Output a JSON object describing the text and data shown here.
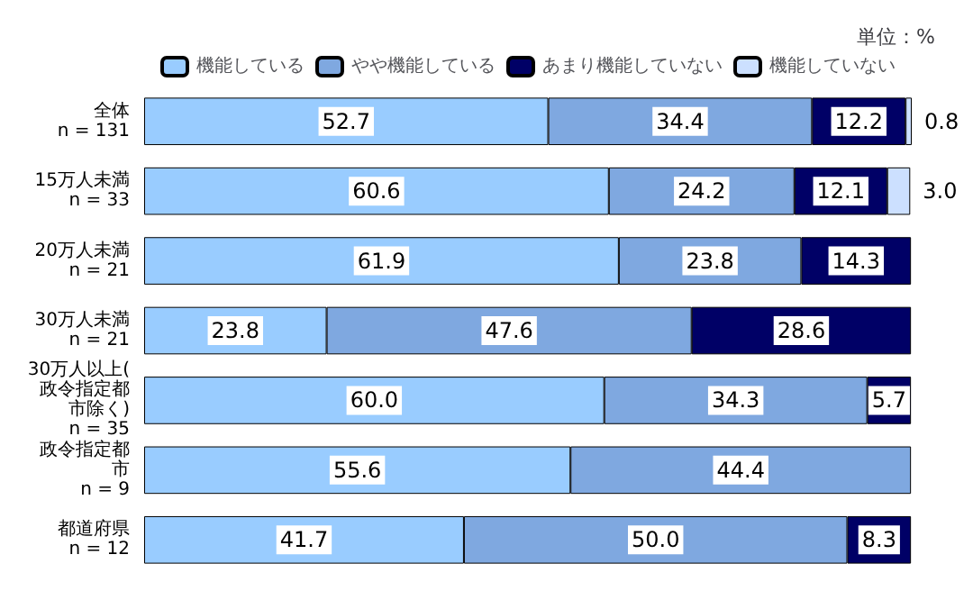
{
  "chart_data": {
    "type": "bar",
    "orientation": "horizontal",
    "stacked": true,
    "categories": [
      "全体\nn = 131",
      "15万人未満\nn = 33",
      "20万人未満\nn = 21",
      "30万人未満\nn = 21",
      "30万人以上(政令指定都市除く)\nn = 35",
      "政令指定都市\nn = 9",
      "都道府県\nn = 12"
    ],
    "series": [
      {
        "name": "機能している",
        "color": "#99ccff",
        "values": [
          52.7,
          60.6,
          61.9,
          23.8,
          60.0,
          55.6,
          41.7
        ],
        "value_labels": [
          "52.7",
          "60.6",
          "61.9",
          "23.8",
          "60.0",
          "55.6",
          "41.7"
        ]
      },
      {
        "name": "やや機能している",
        "color": "#7fa8e0",
        "values": [
          34.4,
          24.2,
          23.8,
          47.6,
          34.3,
          44.4,
          50.0
        ],
        "value_labels": [
          "34.4",
          "24.2",
          "23.8",
          "47.6",
          "34.3",
          "44.4",
          "50.0"
        ]
      },
      {
        "name": "あまり機能していない",
        "color": "#000066",
        "values": [
          12.2,
          12.1,
          14.3,
          28.6,
          5.7,
          0,
          8.3
        ],
        "value_labels": [
          "12.2",
          "12.1",
          "14.3",
          "28.6",
          "5.7",
          null,
          "8.3"
        ]
      },
      {
        "name": "機能していない",
        "color": "#cce0ff",
        "values": [
          0.8,
          3.0,
          0,
          0,
          0,
          0,
          0
        ],
        "value_labels": [
          "0.8",
          "3.0",
          null,
          null,
          null,
          null,
          null
        ]
      }
    ],
    "annotations": [
      "単位：%"
    ],
    "legend": "top"
  }
}
